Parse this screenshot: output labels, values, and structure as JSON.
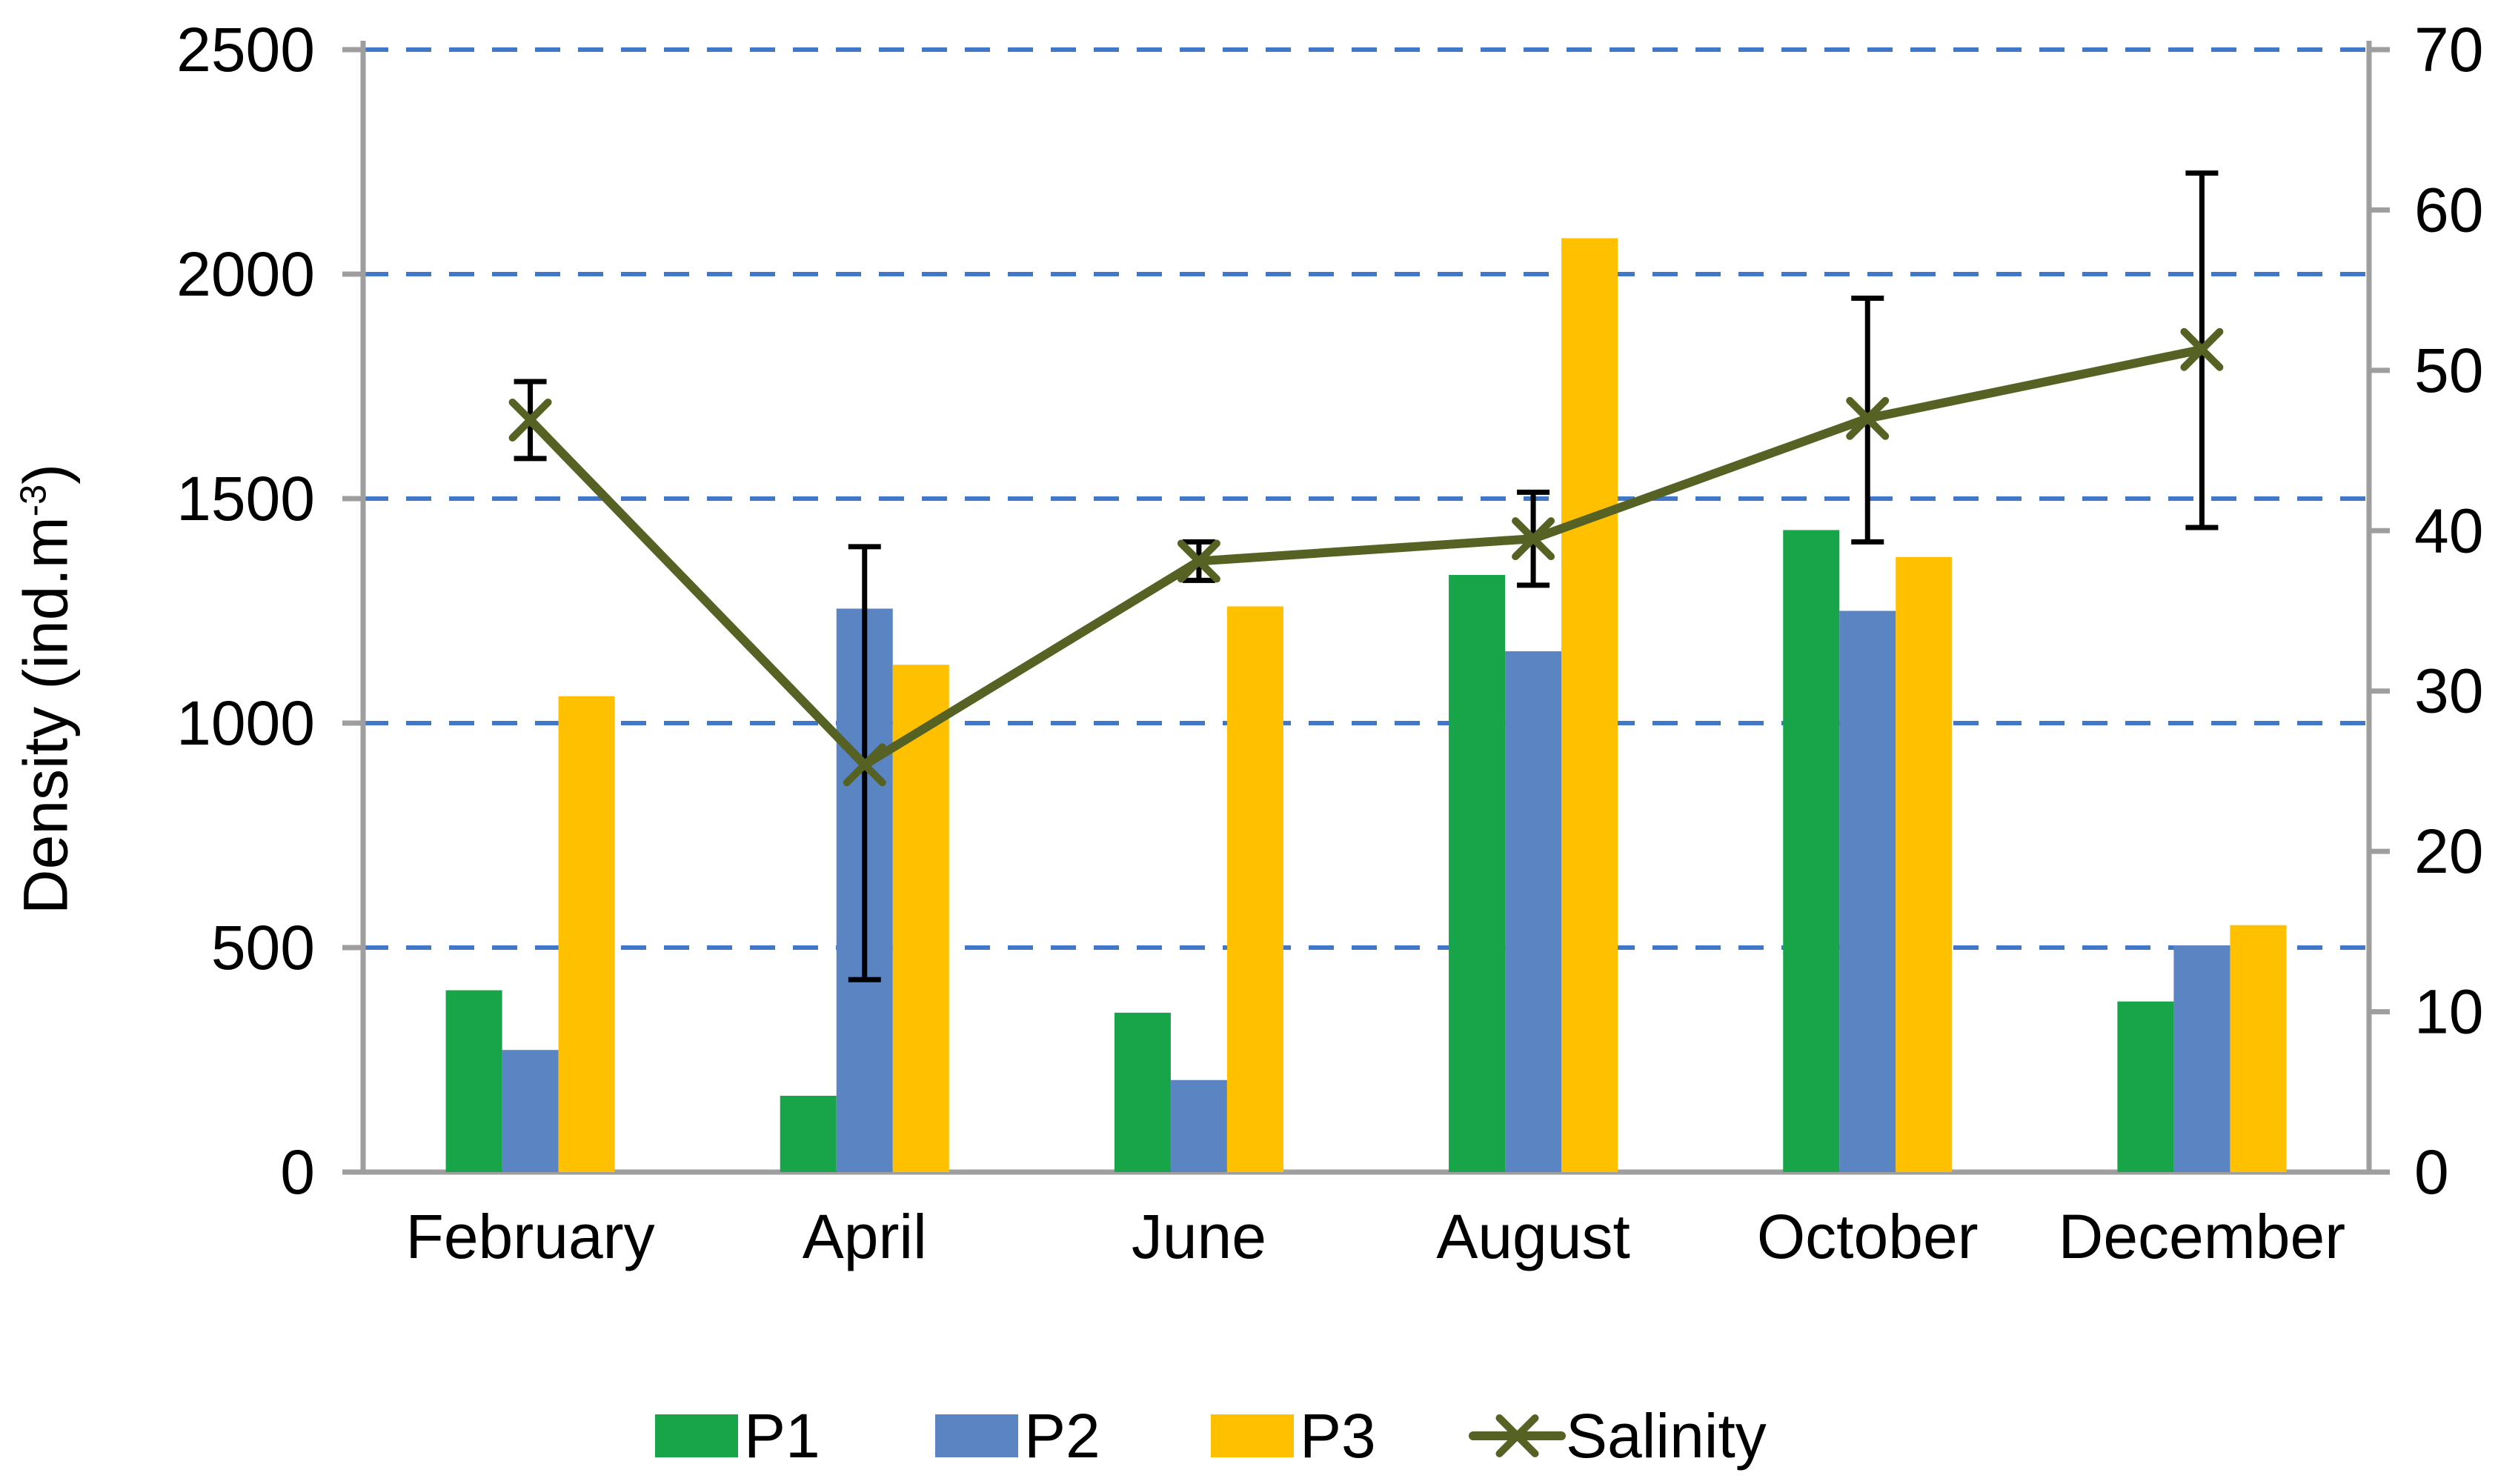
{
  "chart_data": {
    "type": "bar+line",
    "categories": [
      "February",
      "April",
      "June",
      "August",
      "October",
      "December"
    ],
    "series": [
      {
        "name": "P1",
        "type": "bar",
        "axis": "left",
        "color": "#18a54a",
        "values": [
          405,
          170,
          355,
          1330,
          1430,
          380
        ]
      },
      {
        "name": "P2",
        "type": "bar",
        "axis": "left",
        "color": "#5b84c2",
        "values": [
          272,
          1255,
          205,
          1160,
          1250,
          505
        ]
      },
      {
        "name": "P3",
        "type": "bar",
        "axis": "left",
        "color": "#ffc000",
        "values": [
          1060,
          1130,
          1260,
          2080,
          1370,
          550
        ]
      },
      {
        "name": "Salinity",
        "type": "line",
        "axis": "right",
        "color": "#556224",
        "values": [
          46.9,
          25.4,
          38.1,
          39.5,
          47.0,
          51.3
        ],
        "error_up": [
          2.4,
          13.6,
          1.2,
          2.9,
          7.5,
          11.0
        ],
        "error_down": [
          2.4,
          13.4,
          1.2,
          2.9,
          7.7,
          11.1
        ]
      }
    ],
    "left_axis": {
      "label_prefix": "Density (ind.m",
      "label_sup": "-3",
      "label_suffix": ")",
      "min": 0,
      "max": 2500,
      "step": 500,
      "ticks": [
        0,
        500,
        1000,
        1500,
        2000,
        2500
      ]
    },
    "right_axis": {
      "min": 0,
      "max": 70,
      "step": 10,
      "ticks": [
        0,
        10,
        20,
        30,
        40,
        50,
        60,
        70
      ]
    },
    "grid": "horizontal dashed lines at left-axis multiples of 500",
    "legend_position": "bottom",
    "legend": [
      "P1",
      "P2",
      "P3",
      "Salinity"
    ],
    "colors": {
      "gridline": "#4177c8",
      "axis": "#9e9e9e",
      "error_bar": "#000000",
      "text": "#000000"
    },
    "title": ""
  }
}
